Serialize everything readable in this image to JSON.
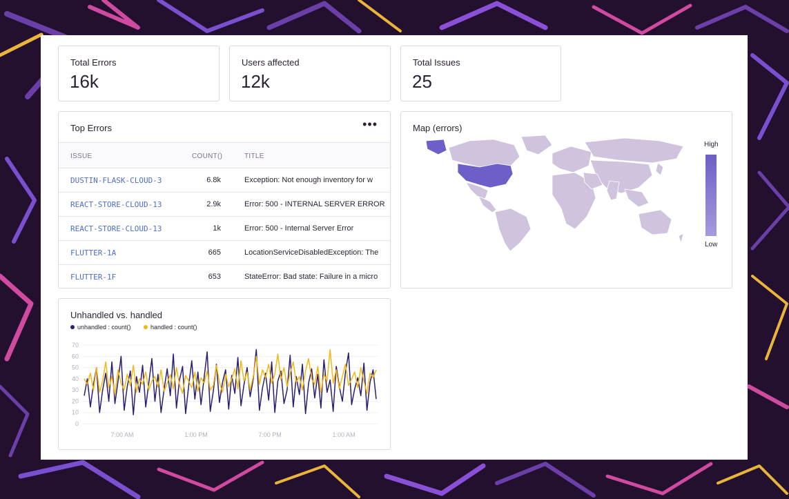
{
  "stats": [
    {
      "label": "Total Errors",
      "value": "16k"
    },
    {
      "label": "Users affected",
      "value": "12k"
    },
    {
      "label": "Total Issues",
      "value": "25"
    }
  ],
  "top_errors": {
    "title": "Top Errors",
    "menu_icon": "more-horizontal-icon",
    "columns": {
      "issue": "ISSUE",
      "count": "COUNT()",
      "title": "TITLE"
    },
    "rows": [
      {
        "issue": "DUSTIN-FLASK-CLOUD-3",
        "count": "6.8k",
        "title": "Exception: Not enough inventory for w"
      },
      {
        "issue": "REACT-STORE-CLOUD-13",
        "count": "2.9k",
        "title": "Error: 500 - INTERNAL SERVER ERROR"
      },
      {
        "issue": "REACT-STORE-CLOUD-13",
        "count": "1k",
        "title": "Error: 500 - Internal Server Error"
      },
      {
        "issue": "FLUTTER-1A",
        "count": "665",
        "title": "LocationServiceDisabledException: The"
      },
      {
        "issue": "FLUTTER-1F",
        "count": "653",
        "title": "StateError: Bad state: Failure in a micro"
      }
    ]
  },
  "map": {
    "title": "Map (errors)",
    "legend_high": "High",
    "legend_low": "Low",
    "colors": {
      "high": "#6c5fc7",
      "low": "#cfc3dd",
      "base": "#cfc3dd"
    }
  },
  "chart": {
    "title": "Unhandled vs. handled",
    "colors": {
      "unhandled": "#2b1d70",
      "handled": "#f2b712"
    }
  },
  "chart_data": {
    "type": "line",
    "title": "Unhandled vs. handled",
    "ylim": [
      0,
      70
    ],
    "yticks": [
      "70",
      "60",
      "50",
      "40",
      "30",
      "20",
      "10",
      "0"
    ],
    "xticks": [
      "7:00 AM",
      "1:00 PM",
      "7:00 PM",
      "1:00 AM"
    ],
    "legend_position": "top-left",
    "grid": true,
    "series": [
      {
        "name": "unhandled : count()",
        "values": [
          25,
          40,
          15,
          35,
          50,
          10,
          30,
          45,
          20,
          55,
          18,
          38,
          60,
          12,
          33,
          47,
          8,
          42,
          28,
          52,
          15,
          36,
          58,
          20,
          44,
          10,
          31,
          49,
          25,
          62,
          14,
          39,
          51,
          9,
          34,
          56,
          22,
          46,
          17,
          41,
          64,
          11,
          29,
          53,
          19,
          37,
          48,
          13,
          43,
          27,
          59,
          16,
          35,
          50,
          24,
          40,
          66,
          12,
          32,
          45,
          21,
          55,
          10,
          38,
          47,
          18,
          30,
          61,
          15,
          42,
          26,
          53,
          9,
          36,
          49,
          23,
          44,
          14,
          57,
          28,
          39,
          11,
          51,
          33,
          20,
          46,
          63,
          17,
          31,
          41,
          25,
          54,
          12,
          37,
          48,
          22
        ]
      },
      {
        "name": "handled : count()",
        "values": [
          40,
          35,
          45,
          30,
          50,
          28,
          38,
          55,
          32,
          42,
          26,
          48,
          36,
          30,
          44,
          34,
          52,
          28,
          40,
          35,
          46,
          30,
          38,
          42,
          33,
          48,
          29,
          36,
          44,
          31,
          50,
          35,
          27,
          43,
          38,
          32,
          46,
          29,
          41,
          36,
          47,
          30,
          34,
          52,
          37,
          28,
          44,
          33,
          40,
          49,
          31,
          56,
          38,
          46,
          30,
          42,
          60,
          35,
          48,
          41,
          53,
          36,
          44,
          62,
          39,
          50,
          33,
          45,
          55,
          37,
          42,
          30,
          47,
          58,
          40,
          35,
          51,
          28,
          44,
          38,
          66,
          36,
          48,
          31,
          42,
          53,
          34,
          40,
          46,
          32,
          50,
          38,
          27,
          45,
          41,
          48
        ]
      }
    ]
  }
}
